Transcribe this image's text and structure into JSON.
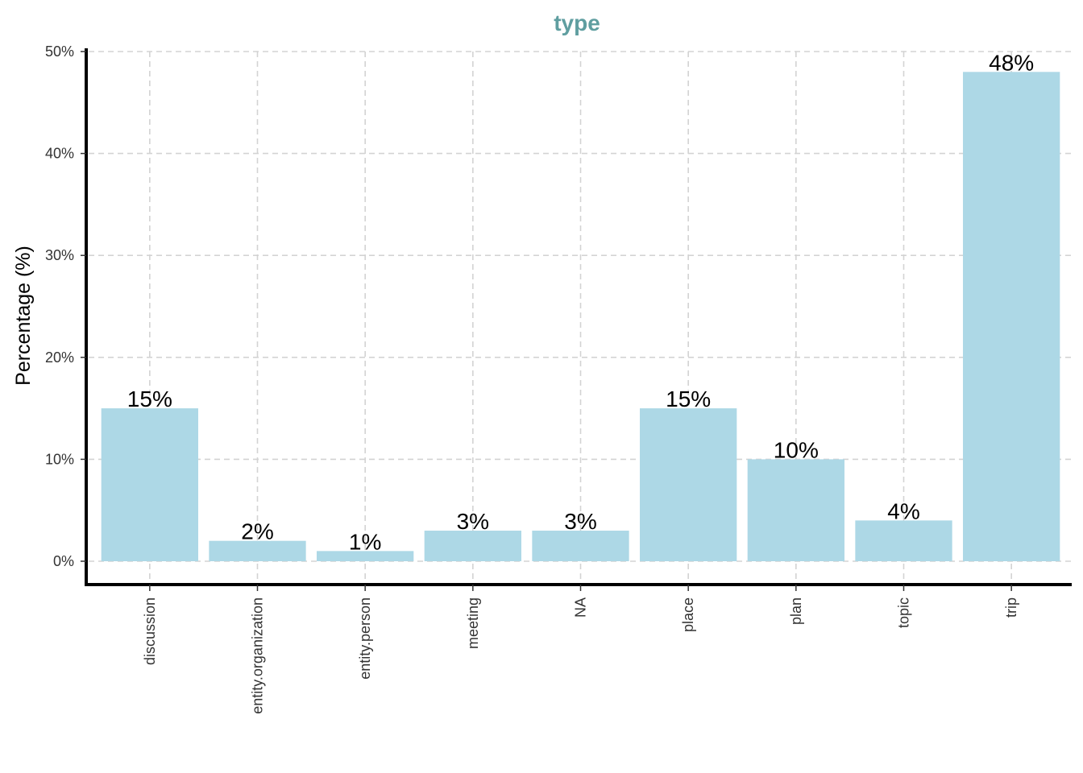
{
  "chart_data": {
    "type": "bar",
    "title": "type",
    "xlabel": "",
    "ylabel": "Percentage (%)",
    "categories": [
      "discussion",
      "entity.organization",
      "entity.person",
      "meeting",
      "NA",
      "place",
      "plan",
      "topic",
      "trip"
    ],
    "values": [
      15,
      2,
      1,
      3,
      3,
      15,
      10,
      4,
      48
    ],
    "data_labels": [
      "15%",
      "2%",
      "1%",
      "3%",
      "3%",
      "15%",
      "10%",
      "4%",
      "48%"
    ],
    "ylim": [
      0,
      50
    ],
    "y_ticks": [
      0,
      10,
      20,
      30,
      40,
      50
    ],
    "y_tick_labels": [
      "0%",
      "10%",
      "20%",
      "30%",
      "40%",
      "50%"
    ],
    "grid": true,
    "legend": "none",
    "colors": {
      "bar": "#add8e6",
      "title": "#5f9ea0",
      "grid": "#d3d3d3",
      "axis": "#000000"
    }
  }
}
